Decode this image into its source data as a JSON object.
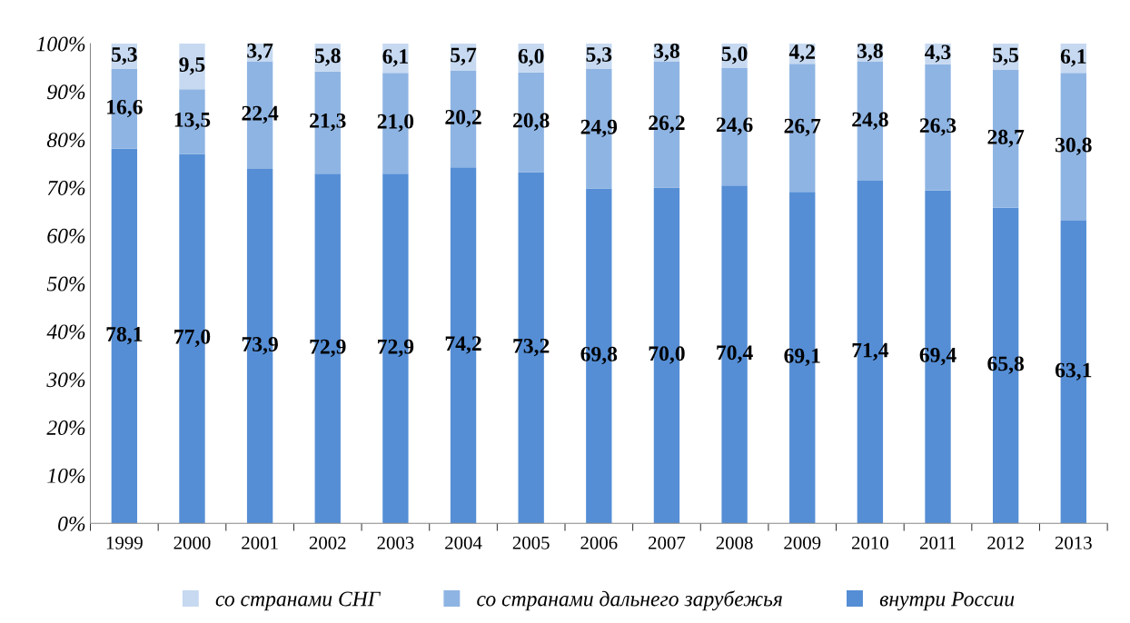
{
  "chart_data": {
    "type": "bar",
    "stacked": true,
    "legend": "bottom",
    "grid": false,
    "categories": [
      "1999",
      "2000",
      "2001",
      "2002",
      "2003",
      "2004",
      "2005",
      "2006",
      "2007",
      "2008",
      "2009",
      "2010",
      "2011",
      "2012",
      "2013"
    ],
    "series": [
      {
        "name": "внутри России",
        "color": "#558ed5",
        "values": [
          78.1,
          77.0,
          73.9,
          72.9,
          72.9,
          74.2,
          73.2,
          69.8,
          70.0,
          70.4,
          69.1,
          71.4,
          69.4,
          65.8,
          63.1
        ],
        "value_labels": [
          "78,1",
          "77,0",
          "73,9",
          "72,9",
          "72,9",
          "74,2",
          "73,2",
          "69,8",
          "70,0",
          "70,4",
          "69,1",
          "71,4",
          "69,4",
          "65,8",
          "63,1"
        ]
      },
      {
        "name": "со странами дальнего зарубежья",
        "color": "#8eb4e3",
        "values": [
          16.6,
          13.5,
          22.4,
          21.3,
          21.0,
          20.2,
          20.8,
          24.9,
          26.2,
          24.6,
          26.7,
          24.8,
          26.3,
          28.7,
          30.8
        ],
        "value_labels": [
          "16,6",
          "13,5",
          "22,4",
          "21,3",
          "21,0",
          "20,2",
          "20,8",
          "24,9",
          "26,2",
          "24,6",
          "26,7",
          "24,8",
          "26,3",
          "28,7",
          "30,8"
        ]
      },
      {
        "name": "со странами СНГ",
        "color": "#c6d9f1",
        "values": [
          5.3,
          9.5,
          3.7,
          5.8,
          6.1,
          5.7,
          6.0,
          5.3,
          3.8,
          5.0,
          4.2,
          3.8,
          4.3,
          5.5,
          6.1
        ],
        "value_labels": [
          "5,3",
          "9,5",
          "3,7",
          "5,8",
          "6,1",
          "5,7",
          "6,0",
          "5,3",
          "3,8",
          "5,0",
          "4,2",
          "3,8",
          "4,3",
          "5,5",
          "6,1"
        ]
      }
    ],
    "ylim": [
      0,
      100
    ],
    "yticks": [
      {
        "value": 0,
        "label": "0%"
      },
      {
        "value": 10,
        "label": "10%"
      },
      {
        "value": 20,
        "label": "20%"
      },
      {
        "value": 30,
        "label": "30%"
      },
      {
        "value": 40,
        "label": "40%"
      },
      {
        "value": 50,
        "label": "50%"
      },
      {
        "value": 60,
        "label": "60%"
      },
      {
        "value": 70,
        "label": "70%"
      },
      {
        "value": 80,
        "label": "80%"
      },
      {
        "value": 90,
        "label": "90%"
      },
      {
        "value": 100,
        "label": "100%"
      }
    ]
  }
}
